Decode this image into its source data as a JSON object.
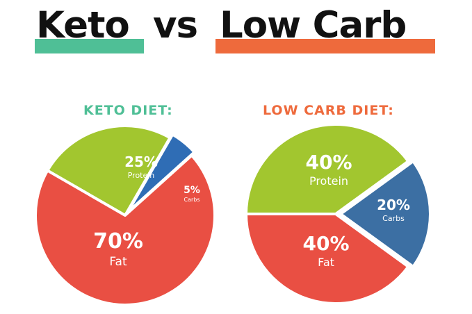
{
  "header": {
    "title_part1": "Keto",
    "title_part2": "vs",
    "title_part3": "Low Carb",
    "highlight_colors": {
      "keto": "#4fbf96",
      "low_carb": "#ee6a3c"
    }
  },
  "colors": {
    "fat": "#e94f43",
    "protein": "#a2c62f",
    "carbs_keto": "#2f6db5",
    "carbs_low_carb": "#3c6fa3"
  },
  "chart_data": [
    {
      "type": "pie",
      "title": "KETO DIET:",
      "title_color": "#4fbf96",
      "slices": [
        {
          "name": "Protein",
          "value": 25,
          "label": "25%"
        },
        {
          "name": "Carbs",
          "value": 5,
          "label": "5%"
        },
        {
          "name": "Fat",
          "value": 70,
          "label": "70%"
        }
      ]
    },
    {
      "type": "pie",
      "title": "LOW CARB DIET:",
      "title_color": "#ee6a3c",
      "slices": [
        {
          "name": "Protein",
          "value": 40,
          "label": "40%"
        },
        {
          "name": "Carbs",
          "value": 20,
          "label": "20%"
        },
        {
          "name": "Fat",
          "value": 40,
          "label": "40%"
        }
      ]
    }
  ]
}
